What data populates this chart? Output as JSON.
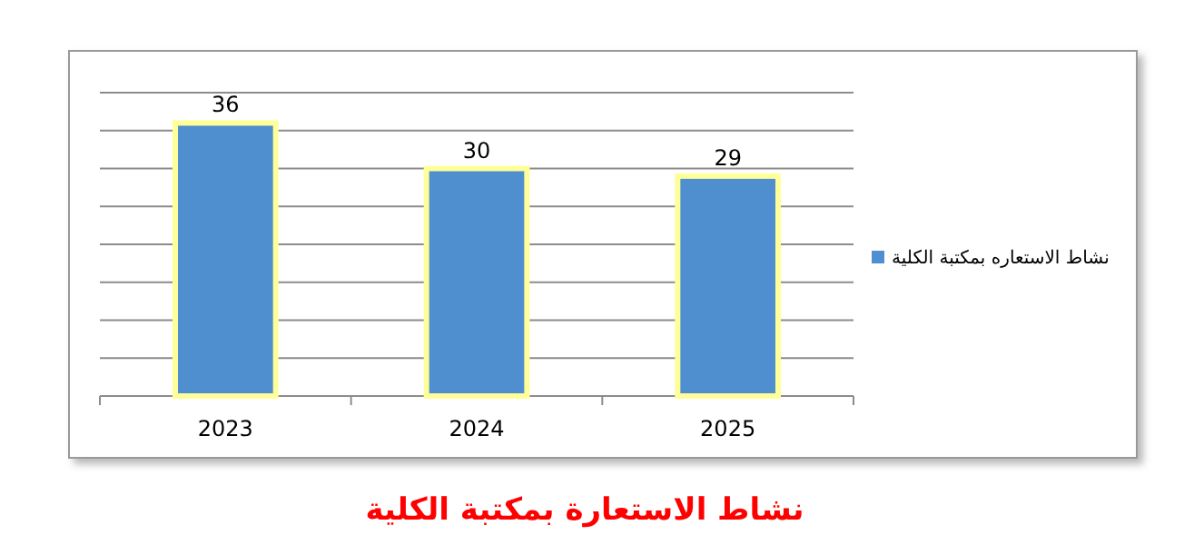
{
  "chart_data": {
    "type": "bar",
    "title": "نشاط الاستعارة بمكتبة الكلية",
    "categories": [
      "2023",
      "2024",
      "2025"
    ],
    "series": [
      {
        "name": "نشاط الاستعاره بمكتبة الكلية",
        "color": "#4f8fd0",
        "values": [
          36,
          30,
          29
        ]
      }
    ],
    "ylim": [
      0,
      40
    ],
    "yticks": [
      {
        "value": 0,
        "label": null
      },
      {
        "value": 5,
        "label": null
      },
      {
        "value": 10,
        "label": null
      },
      {
        "value": 15,
        "label": null
      },
      {
        "value": 20,
        "label": null
      },
      {
        "value": 25,
        "label": null
      },
      {
        "value": 30,
        "label": null
      },
      {
        "value": 35,
        "label": null
      },
      {
        "value": 40,
        "label": null
      }
    ],
    "tick_labels": "x",
    "grid": "y",
    "legend": "right",
    "data_labels": true
  }
}
